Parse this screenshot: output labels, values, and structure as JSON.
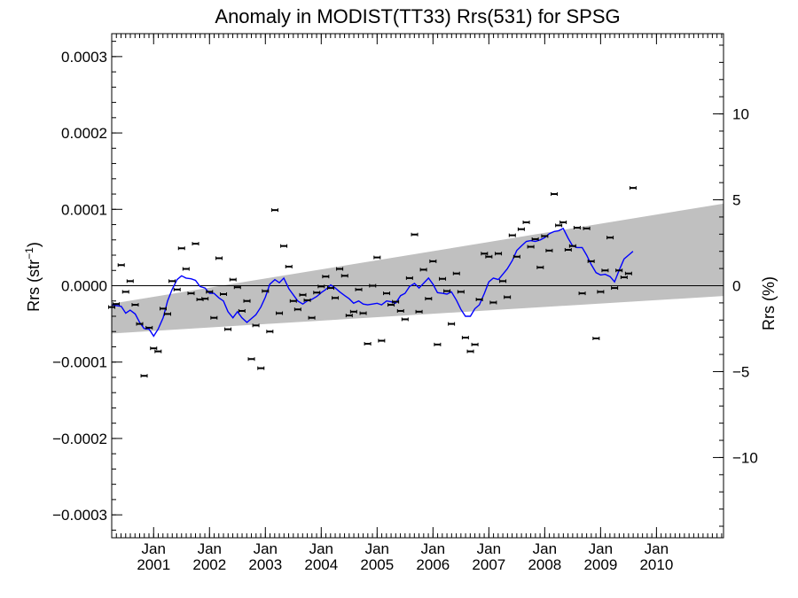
{
  "chart_data": {
    "type": "scatter",
    "title": "Anomaly in MODIST(TT33) Rrs(531) for SPSG",
    "ylabel_left": "Rrs (str",
    "ylabel_left_sup": "−1",
    "ylabel_left_close": ")",
    "ylabel_right": "Rrs (%)",
    "x_range": [
      2000.0,
      2010.95
    ],
    "ylim_left": [
      -0.00033,
      0.00033
    ],
    "ylim_right": [
      -14.67,
      14.67
    ],
    "left_ticks": [
      {
        "value": 0.0003,
        "label": "0.0003"
      },
      {
        "value": 0.0002,
        "label": "0.0002"
      },
      {
        "value": 0.0001,
        "label": "0.0001"
      },
      {
        "value": 0.0,
        "label": "0.0000"
      },
      {
        "value": -0.0001,
        "label": "−0.0001"
      },
      {
        "value": -0.0002,
        "label": "−0.0002"
      },
      {
        "value": -0.0003,
        "label": "−0.0003"
      }
    ],
    "right_ticks": [
      {
        "value": 10,
        "label": "10"
      },
      {
        "value": 5,
        "label": "5"
      },
      {
        "value": 0,
        "label": "0"
      },
      {
        "value": -5,
        "label": "−5"
      },
      {
        "value": -10,
        "label": "−10"
      }
    ],
    "x_ticks": [
      {
        "value": 2000.75,
        "label1": "Jan",
        "label2": "2001"
      },
      {
        "value": 2001.75,
        "label1": "Jan",
        "label2": "2002"
      },
      {
        "value": 2002.75,
        "label1": "Jan",
        "label2": "2003"
      },
      {
        "value": 2003.75,
        "label1": "Jan",
        "label2": "2004"
      },
      {
        "value": 2004.75,
        "label1": "Jan",
        "label2": "2005"
      },
      {
        "value": 2005.75,
        "label1": "Jan",
        "label2": "2006"
      },
      {
        "value": 2006.75,
        "label1": "Jan",
        "label2": "2007"
      },
      {
        "value": 2007.75,
        "label1": "Jan",
        "label2": "2008"
      },
      {
        "value": 2008.75,
        "label1": "Jan",
        "label2": "2009"
      },
      {
        "value": 2009.75,
        "label1": "Jan",
        "label2": "2010"
      }
    ],
    "band": {
      "x": [
        2000.0,
        2010.95
      ],
      "upper": [
        -2.35e-05,
        0.0001075
      ],
      "lower": [
        -6.25e-05,
        -1.35e-05
      ],
      "color": "#c0c0c0"
    },
    "zero_line": 0.0,
    "points": [
      [
        2000.0,
        -2.8e-05
      ],
      [
        2000.08,
        -2.4e-05
      ],
      [
        2000.17,
        2.7e-05
      ],
      [
        2000.25,
        -8e-06
      ],
      [
        2000.33,
        6e-06
      ],
      [
        2000.42,
        -2.5e-05
      ],
      [
        2000.5,
        -5e-05
      ],
      [
        2000.58,
        -0.000118
      ],
      [
        2000.67,
        -5.5e-05
      ],
      [
        2000.75,
        -8.2e-05
      ],
      [
        2000.83,
        -8.6e-05
      ],
      [
        2000.92,
        -3e-05
      ],
      [
        2001.0,
        -3.7e-05
      ],
      [
        2001.08,
        6e-06
      ],
      [
        2001.17,
        -5e-06
      ],
      [
        2001.25,
        4.9e-05
      ],
      [
        2001.33,
        2.2e-05
      ],
      [
        2001.42,
        -1e-05
      ],
      [
        2001.5,
        5.5e-05
      ],
      [
        2001.58,
        -1.8e-05
      ],
      [
        2001.67,
        -1.7e-05
      ],
      [
        2001.75,
        -8e-06
      ],
      [
        2001.83,
        -4.2e-05
      ],
      [
        2001.92,
        3.6e-05
      ],
      [
        2002.0,
        -1.1e-05
      ],
      [
        2002.08,
        -5.7e-05
      ],
      [
        2002.17,
        8e-06
      ],
      [
        2002.25,
        -2e-06
      ],
      [
        2002.33,
        -3.3e-05
      ],
      [
        2002.42,
        -2e-05
      ],
      [
        2002.5,
        -9.6e-05
      ],
      [
        2002.58,
        -5.2e-05
      ],
      [
        2002.67,
        -0.000108
      ],
      [
        2002.75,
        -7e-06
      ],
      [
        2002.83,
        -6e-05
      ],
      [
        2002.92,
        9.9e-05
      ],
      [
        2003.0,
        -3.6e-05
      ],
      [
        2003.08,
        5.2e-05
      ],
      [
        2003.17,
        2.5e-05
      ],
      [
        2003.25,
        -2e-05
      ],
      [
        2003.33,
        -3.1e-05
      ],
      [
        2003.42,
        -1.2e-05
      ],
      [
        2003.5,
        -1.9e-05
      ],
      [
        2003.58,
        -4.2e-05
      ],
      [
        2003.67,
        -9e-06
      ],
      [
        2003.75,
        -1e-06
      ],
      [
        2003.83,
        1.2e-05
      ],
      [
        2003.92,
        -3e-06
      ],
      [
        2004.0,
        -1.6e-05
      ],
      [
        2004.08,
        2.2e-05
      ],
      [
        2004.17,
        1.3e-05
      ],
      [
        2004.25,
        -3.9e-05
      ],
      [
        2004.33,
        -3.4e-05
      ],
      [
        2004.42,
        -5e-06
      ],
      [
        2004.5,
        -3.6e-05
      ],
      [
        2004.58,
        -7.6e-05
      ],
      [
        2004.67,
        0.0
      ],
      [
        2004.75,
        3.7e-05
      ],
      [
        2004.83,
        -7.2e-05
      ],
      [
        2004.92,
        -1e-05
      ],
      [
        2005.0,
        -2.5e-05
      ],
      [
        2005.08,
        -2.1e-05
      ],
      [
        2005.17,
        -3.3e-05
      ],
      [
        2005.25,
        -4.4e-05
      ],
      [
        2005.33,
        1e-05
      ],
      [
        2005.42,
        6.7e-05
      ],
      [
        2005.5,
        -3.4e-05
      ],
      [
        2005.58,
        2.1e-05
      ],
      [
        2005.67,
        -1.7e-05
      ],
      [
        2005.75,
        3.2e-05
      ],
      [
        2005.83,
        -7.7e-05
      ],
      [
        2005.92,
        9e-06
      ],
      [
        2006.0,
        -7e-06
      ],
      [
        2006.08,
        -5e-05
      ],
      [
        2006.17,
        1.6e-05
      ],
      [
        2006.25,
        -8e-06
      ],
      [
        2006.33,
        -6.8e-05
      ],
      [
        2006.42,
        -8.6e-05
      ],
      [
        2006.5,
        -7.7e-05
      ],
      [
        2006.58,
        -1.8e-05
      ],
      [
        2006.67,
        4.2e-05
      ],
      [
        2006.75,
        3.8e-05
      ],
      [
        2006.83,
        -2.2e-05
      ],
      [
        2006.92,
        4.2e-05
      ],
      [
        2007.0,
        6e-06
      ],
      [
        2007.08,
        -1.5e-05
      ],
      [
        2007.17,
        6.6e-05
      ],
      [
        2007.25,
        3.8e-05
      ],
      [
        2007.33,
        7.4e-05
      ],
      [
        2007.42,
        8.3e-05
      ],
      [
        2007.5,
        5.1e-05
      ],
      [
        2007.58,
        6.1e-05
      ],
      [
        2007.67,
        2.4e-05
      ],
      [
        2007.75,
        6.5e-05
      ],
      [
        2007.83,
        4.6e-05
      ],
      [
        2007.92,
        0.00012
      ],
      [
        2008.0,
        7.9e-05
      ],
      [
        2008.08,
        8.3e-05
      ],
      [
        2008.17,
        4.7e-05
      ],
      [
        2008.25,
        5.2e-05
      ],
      [
        2008.33,
        7.6e-05
      ],
      [
        2008.42,
        -1e-05
      ],
      [
        2008.5,
        7.5e-05
      ],
      [
        2008.58,
        3.2e-05
      ],
      [
        2008.67,
        -6.9e-05
      ],
      [
        2008.75,
        -8e-06
      ],
      [
        2008.83,
        2e-05
      ],
      [
        2008.92,
        6.3e-05
      ],
      [
        2009.0,
        -3e-06
      ],
      [
        2009.08,
        2e-05
      ],
      [
        2009.17,
        1.1e-05
      ],
      [
        2009.25,
        1.6e-05
      ],
      [
        2009.33,
        0.000128
      ]
    ],
    "points_note": "",
    "line": [
      [
        2000.0,
        -2.5e-05
      ],
      [
        2000.08,
        -2.6e-05
      ],
      [
        2000.17,
        -2.7e-05
      ],
      [
        2000.25,
        -3.6e-05
      ],
      [
        2000.33,
        -3.2e-05
      ],
      [
        2000.42,
        -3.7e-05
      ],
      [
        2000.5,
        -4.8e-05
      ],
      [
        2000.58,
        -5.6e-05
      ],
      [
        2000.67,
        -5.7e-05
      ],
      [
        2000.75,
        -6.6e-05
      ],
      [
        2000.83,
        -5.7e-05
      ],
      [
        2000.92,
        -4.2e-05
      ],
      [
        2001.0,
        -2e-05
      ],
      [
        2001.08,
        -5e-06
      ],
      [
        2001.17,
        8e-06
      ],
      [
        2001.25,
        1.3e-05
      ],
      [
        2001.33,
        1e-05
      ],
      [
        2001.42,
        9e-06
      ],
      [
        2001.5,
        7e-06
      ],
      [
        2001.58,
        -1e-06
      ],
      [
        2001.67,
        -3e-06
      ],
      [
        2001.75,
        -1e-05
      ],
      [
        2001.83,
        -1e-05
      ],
      [
        2001.92,
        -1.6e-05
      ],
      [
        2002.0,
        -2e-05
      ],
      [
        2002.08,
        -3.4e-05
      ],
      [
        2002.17,
        -4.2e-05
      ],
      [
        2002.25,
        -3.4e-05
      ],
      [
        2002.33,
        -4.2e-05
      ],
      [
        2002.42,
        -4.8e-05
      ],
      [
        2002.5,
        -4.3e-05
      ],
      [
        2002.58,
        -3.8e-05
      ],
      [
        2002.67,
        -2.8e-05
      ],
      [
        2002.75,
        -1.5e-05
      ],
      [
        2002.83,
        2e-06
      ],
      [
        2002.92,
        8e-06
      ],
      [
        2003.0,
        4e-06
      ],
      [
        2003.08,
        1e-05
      ],
      [
        2003.17,
        -4e-06
      ],
      [
        2003.25,
        -1.2e-05
      ],
      [
        2003.33,
        -2e-05
      ],
      [
        2003.42,
        -2.4e-05
      ],
      [
        2003.5,
        -2e-05
      ],
      [
        2003.58,
        -1.8e-05
      ],
      [
        2003.67,
        -1.4e-05
      ],
      [
        2003.75,
        -9e-06
      ],
      [
        2003.83,
        -5e-06
      ],
      [
        2003.92,
        1e-06
      ],
      [
        2004.0,
        -3e-06
      ],
      [
        2004.08,
        -8e-06
      ],
      [
        2004.17,
        -1.3e-05
      ],
      [
        2004.25,
        -1.7e-05
      ],
      [
        2004.33,
        -2.3e-05
      ],
      [
        2004.42,
        -2e-05
      ],
      [
        2004.5,
        -2.4e-05
      ],
      [
        2004.58,
        -2.5e-05
      ],
      [
        2004.67,
        -2.4e-05
      ],
      [
        2004.75,
        -2.3e-05
      ],
      [
        2004.83,
        -2.5e-05
      ],
      [
        2004.92,
        -2e-05
      ],
      [
        2005.0,
        -2.1e-05
      ],
      [
        2005.08,
        -2.3e-05
      ],
      [
        2005.17,
        -1.3e-05
      ],
      [
        2005.25,
        -1e-05
      ],
      [
        2005.33,
        -1e-06
      ],
      [
        2005.42,
        3e-06
      ],
      [
        2005.5,
        -3e-06
      ],
      [
        2005.58,
        3e-06
      ],
      [
        2005.67,
        1e-05
      ],
      [
        2005.75,
        2e-06
      ],
      [
        2005.83,
        -9e-06
      ],
      [
        2005.92,
        -1e-05
      ],
      [
        2006.0,
        -1.1e-05
      ],
      [
        2006.08,
        -8e-06
      ],
      [
        2006.17,
        -1.9e-05
      ],
      [
        2006.25,
        -3.1e-05
      ],
      [
        2006.33,
        -4e-05
      ],
      [
        2006.42,
        -4e-05
      ],
      [
        2006.5,
        -3e-05
      ],
      [
        2006.58,
        -2.5e-05
      ],
      [
        2006.67,
        -1e-05
      ],
      [
        2006.75,
        5e-06
      ],
      [
        2006.83,
        1e-05
      ],
      [
        2006.92,
        8e-06
      ],
      [
        2007.0,
        1.5e-05
      ],
      [
        2007.08,
        2.2e-05
      ],
      [
        2007.17,
        3.3e-05
      ],
      [
        2007.25,
        4.6e-05
      ],
      [
        2007.33,
        5.2e-05
      ],
      [
        2007.42,
        5.8e-05
      ],
      [
        2007.5,
        5.9e-05
      ],
      [
        2007.58,
        5.8e-05
      ],
      [
        2007.67,
        6e-05
      ],
      [
        2007.75,
        6.3e-05
      ],
      [
        2007.83,
        6.8e-05
      ],
      [
        2007.92,
        7.1e-05
      ],
      [
        2008.0,
        7.2e-05
      ],
      [
        2008.08,
        7.5e-05
      ],
      [
        2008.17,
        6.2e-05
      ],
      [
        2008.25,
        5.2e-05
      ],
      [
        2008.33,
        5e-05
      ],
      [
        2008.42,
        5e-05
      ],
      [
        2008.5,
        4e-05
      ],
      [
        2008.58,
        2.8e-05
      ],
      [
        2008.67,
        1.7e-05
      ],
      [
        2008.75,
        1.4e-05
      ],
      [
        2008.83,
        1.5e-05
      ],
      [
        2008.92,
        1.2e-05
      ],
      [
        2009.0,
        5e-06
      ],
      [
        2009.08,
        2e-05
      ],
      [
        2009.17,
        3.5e-05
      ],
      [
        2009.25,
        4e-05
      ],
      [
        2009.33,
        4.5e-05
      ]
    ],
    "line_color": "#0000ff",
    "grid": false,
    "legend": "none"
  }
}
